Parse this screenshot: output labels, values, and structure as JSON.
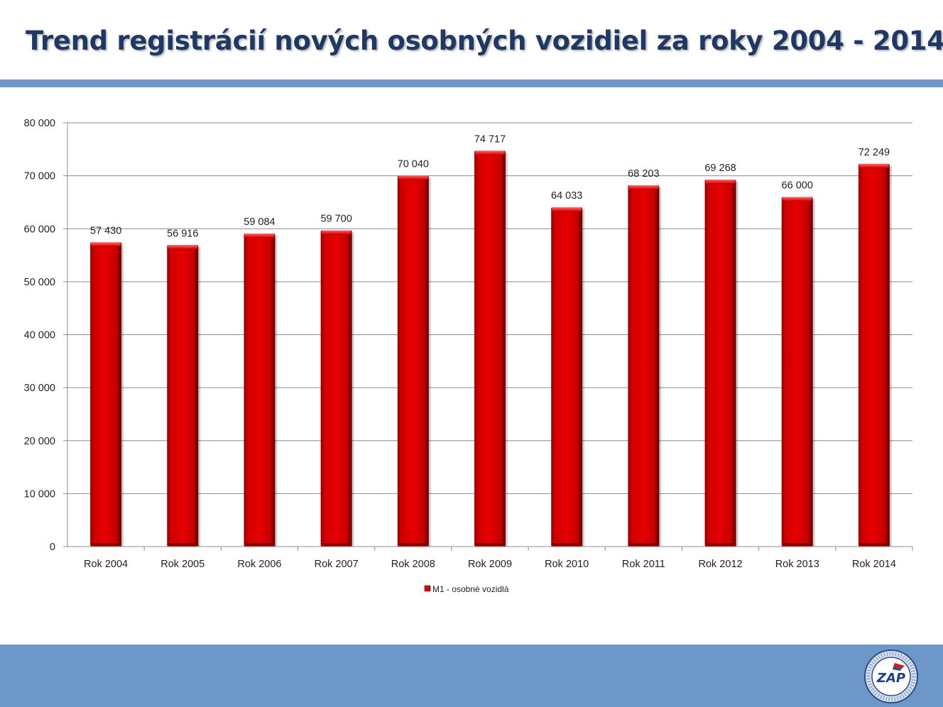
{
  "slide": {
    "title": "Trend registrácií nových osobných vozidiel za roky 2004 - 2014"
  },
  "colors": {
    "title": "#1f3864",
    "band": "#6f97c8",
    "bar": "#d40000",
    "bar_dark": "#7a0000",
    "grid": "#8c8c8c"
  },
  "logo": {
    "text": "ZAP",
    "icon": "zap-association-logo"
  },
  "chart_data": {
    "type": "bar",
    "categories": [
      "Rok 2004",
      "Rok 2005",
      "Rok 2006",
      "Rok 2007",
      "Rok 2008",
      "Rok 2009",
      "Rok 2010",
      "Rok 2011",
      "Rok 2012",
      "Rok 2013",
      "Rok 2014"
    ],
    "series": [
      {
        "name": "M1 - osobné vozidlá",
        "values": [
          57430,
          56916,
          59084,
          59700,
          70040,
          74717,
          64033,
          68203,
          69268,
          66000,
          72249
        ],
        "labels": [
          "57 430",
          "56 916",
          "59 084",
          "59 700",
          "70 040",
          "74 717",
          "64 033",
          "68 203",
          "69 268",
          "66 000",
          "72 249"
        ]
      }
    ],
    "title": "",
    "xlabel": "",
    "ylabel": "",
    "ylim": [
      0,
      80000
    ],
    "yticks": [
      "0",
      "10 000",
      "20 000",
      "30 000",
      "40 000",
      "50 000",
      "60 000",
      "70 000",
      "80 000"
    ],
    "grid": true,
    "legend_position": "bottom"
  }
}
